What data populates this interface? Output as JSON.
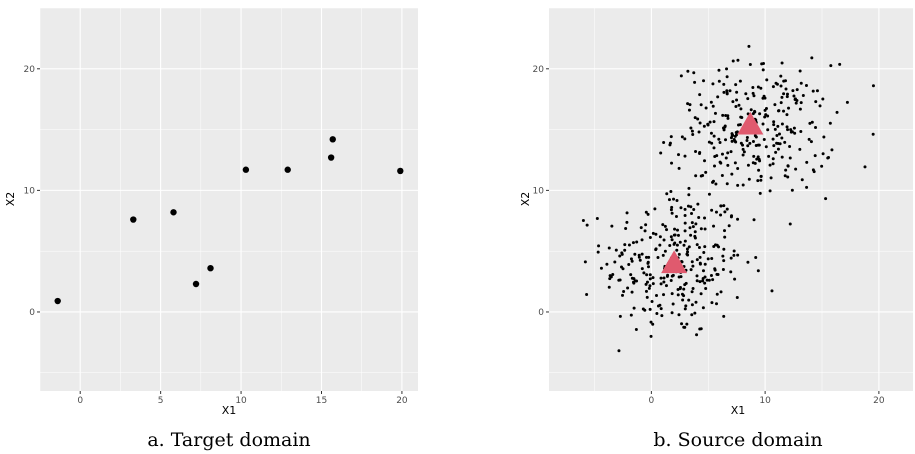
{
  "captions": [
    "a. Target domain",
    "b. Source domain"
  ],
  "chart_data": [
    {
      "type": "scatter",
      "xlabel": "X1",
      "ylabel": "X2",
      "xlim": [
        -2.5,
        21
      ],
      "ylim": [
        -6.5,
        25
      ],
      "xticks": [
        0,
        5,
        10,
        15,
        20
      ],
      "yticks": [
        0,
        10,
        20
      ],
      "x_tick_labels": [
        "0",
        "5",
        "10",
        "15",
        "20"
      ],
      "y_tick_labels": [
        "0",
        "10",
        "20"
      ],
      "grid": true,
      "colors": {
        "point": "#000000",
        "panel": "#ebebeb",
        "grid": "#ffffff"
      },
      "series": [
        {
          "points": [
            [
              -1.4,
              0.9
            ],
            [
              3.3,
              7.6
            ],
            [
              5.8,
              8.2
            ],
            [
              7.2,
              2.3
            ],
            [
              8.1,
              3.6
            ],
            [
              10.3,
              11.7
            ],
            [
              12.9,
              11.7
            ],
            [
              15.6,
              12.7
            ],
            [
              15.7,
              14.2
            ],
            [
              19.9,
              11.6
            ]
          ]
        }
      ]
    },
    {
      "type": "scatter",
      "xlabel": "X1",
      "ylabel": "X2",
      "xlim": [
        -9,
        23
      ],
      "ylim": [
        -6.5,
        25
      ],
      "xticks": [
        0,
        10,
        20
      ],
      "yticks": [
        0,
        10,
        20
      ],
      "x_tick_labels": [
        "0",
        "10",
        "20"
      ],
      "y_tick_labels": [
        "0",
        "10",
        "20"
      ],
      "grid": true,
      "colors": {
        "point": "#000000",
        "centroid": "#e05a6e",
        "panel": "#ebebeb",
        "grid": "#ffffff"
      },
      "clusters": [
        {
          "center": [
            2,
            4
          ],
          "spread": [
            3.1,
            3.1
          ],
          "count": 300
        },
        {
          "center": [
            9,
            15
          ],
          "spread": [
            3.5,
            2.7
          ],
          "count": 300
        }
      ],
      "centroids": [
        [
          2,
          4
        ],
        [
          8.7,
          15.4
        ]
      ]
    }
  ]
}
